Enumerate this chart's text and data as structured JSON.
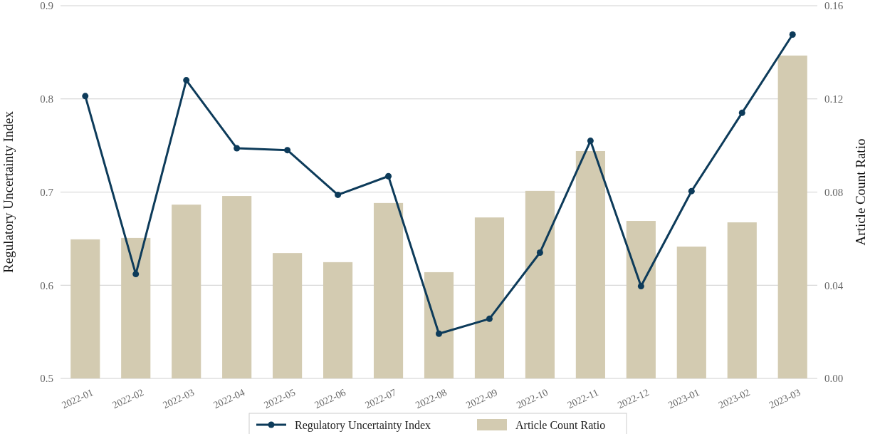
{
  "chart_data": {
    "type": "bar",
    "categories": [
      "2022-01",
      "2022-02",
      "2022-03",
      "2022-04",
      "2022-05",
      "2022-06",
      "2022-07",
      "2022-08",
      "2022-09",
      "2022-10",
      "2022-11",
      "2022-12",
      "2023-01",
      "2023-02",
      "2023-03"
    ],
    "series": [
      {
        "name": "Regulatory Uncertainty Index",
        "type": "line",
        "color": "#0d3b5a",
        "values": [
          0.803,
          0.612,
          0.82,
          0.747,
          0.745,
          0.697,
          0.717,
          0.548,
          0.564,
          0.635,
          0.755,
          0.599,
          0.701,
          0.785,
          0.869
        ]
      },
      {
        "name": "Article Count Ratio",
        "axis": "y2",
        "color": "#d3cbb1",
        "values": [
          0.0597,
          0.0603,
          0.0746,
          0.0783,
          0.0538,
          0.0499,
          0.0753,
          0.0456,
          0.0691,
          0.0805,
          0.0976,
          0.0676,
          0.0566,
          0.067,
          0.1386
        ]
      }
    ],
    "ylabel": "Regulatory Uncertainty Index",
    "y2label": "Article Count Ratio",
    "ylim": [
      0.5,
      0.9
    ],
    "yticks": [
      0.5,
      0.6,
      0.7,
      0.8,
      0.9
    ],
    "y2lim": [
      0,
      0.16
    ],
    "y2ticks": [
      {
        "value": 0,
        "label": "0.00"
      },
      {
        "value": 0.04,
        "label": "0.04"
      },
      {
        "value": 0.08,
        "label": "0.08"
      },
      {
        "value": 0.12,
        "label": "0.12"
      },
      {
        "value": 0.16,
        "label": "0.16"
      }
    ],
    "grid": "y",
    "legend": "bottom",
    "marker": "circle",
    "line_style": "solid"
  }
}
